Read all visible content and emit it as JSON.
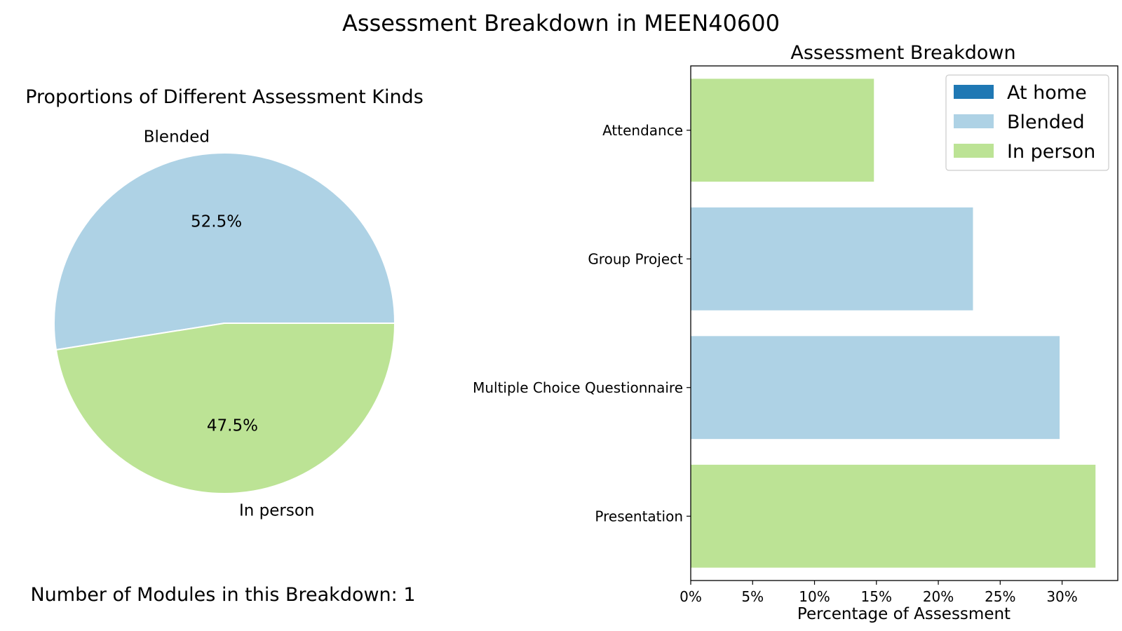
{
  "suptitle": "Assessment Breakdown in MEEN40600",
  "colors": {
    "at_home": "#1f78b4",
    "blended": "#aed2e5",
    "in_person": "#bce395"
  },
  "pie": {
    "title": "Proportions of Different Assessment Kinds",
    "note": "Number of Modules in this Breakdown: 1",
    "slices": [
      {
        "label": "Blended",
        "value": 52.5,
        "pct_label": "52.5%",
        "color": "#aed2e5"
      },
      {
        "label": "In person",
        "value": 47.5,
        "pct_label": "47.5%",
        "color": "#bce395"
      }
    ]
  },
  "chart_data": [
    {
      "type": "pie",
      "title": "Proportions of Different Assessment Kinds",
      "categories": [
        "Blended",
        "In person"
      ],
      "values": [
        52.5,
        47.5
      ]
    },
    {
      "type": "bar",
      "orientation": "horizontal",
      "title": "Assessment Breakdown",
      "xlabel": "Percentage of Assessment",
      "ylabel": "",
      "xlim": [
        0,
        34.5
      ],
      "x_ticks": [
        0,
        5,
        10,
        15,
        20,
        25,
        30
      ],
      "x_tick_labels": [
        "0%",
        "5%",
        "10%",
        "15%",
        "20%",
        "25%",
        "30%"
      ],
      "categories": [
        "Attendance",
        "Group Project",
        "Multiple Choice Questionnaire",
        "Presentation"
      ],
      "values": [
        14.8,
        22.8,
        29.8,
        32.7
      ],
      "kinds": [
        "In person",
        "Blended",
        "Blended",
        "In person"
      ],
      "legend": {
        "placement": "top-right",
        "entries": [
          {
            "name": "At home",
            "color": "#1f78b4"
          },
          {
            "name": "Blended",
            "color": "#aed2e5"
          },
          {
            "name": "In person",
            "color": "#bce395"
          }
        ]
      },
      "grid": false
    }
  ]
}
